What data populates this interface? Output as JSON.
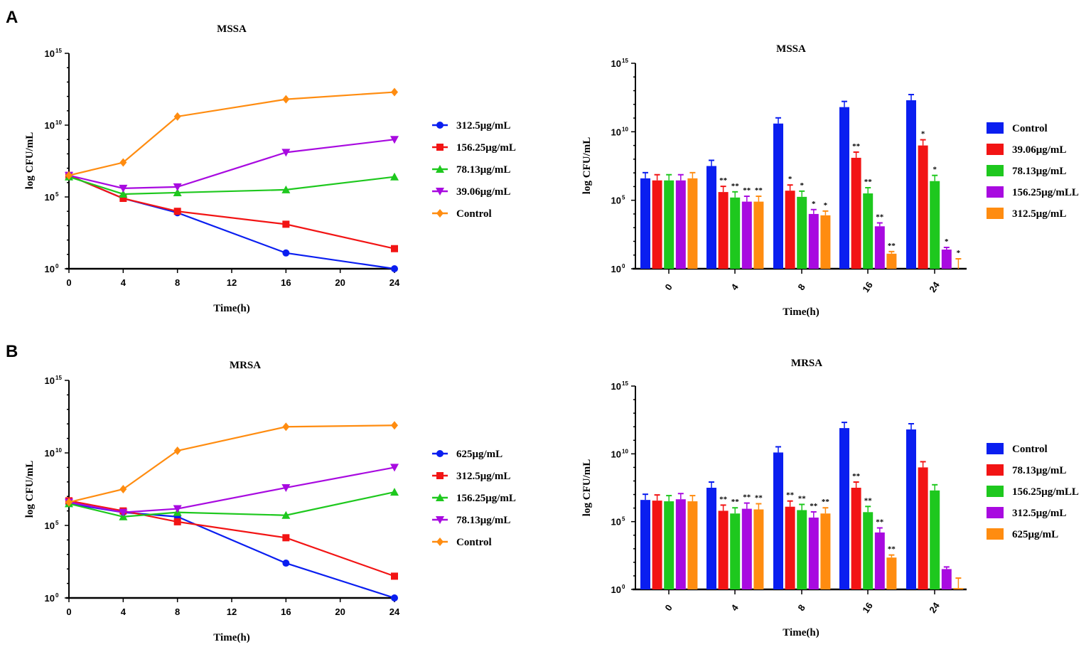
{
  "panels": [
    {
      "letter": "A"
    },
    {
      "letter": "B"
    }
  ],
  "colors": {
    "blue": "#0a1ef0",
    "red": "#f21414",
    "green": "#1ec81e",
    "purple": "#a80ae0",
    "orange": "#ff8c10"
  },
  "chart_data": [
    {
      "type": "line",
      "title": "MSSA",
      "xlabel": "Time(h)",
      "ylabel": "log CFU/mL",
      "yscale": "log10",
      "xlim": [
        0,
        24
      ],
      "ylim_log10": [
        0,
        15
      ],
      "xticks": [
        0,
        4,
        8,
        12,
        16,
        20,
        24
      ],
      "yticks_log10": [
        0,
        5,
        10,
        15
      ],
      "x": [
        0,
        4,
        8,
        16,
        24
      ],
      "legend": "right",
      "series": [
        {
          "name": "312.5μg/mL",
          "color": "blue",
          "marker": "circle",
          "values_log10": [
            6.5,
            4.9,
            3.9,
            1.1,
            0
          ]
        },
        {
          "name": "156.25μg/mL",
          "color": "red",
          "marker": "square",
          "values_log10": [
            6.5,
            4.9,
            4.0,
            3.1,
            1.4
          ]
        },
        {
          "name": "78.13μg/mL",
          "color": "green",
          "marker": "triangle-up",
          "values_log10": [
            6.4,
            5.2,
            5.3,
            5.5,
            6.4
          ]
        },
        {
          "name": "39.06μg/mL",
          "color": "purple",
          "marker": "triangle-down",
          "values_log10": [
            6.5,
            5.6,
            5.7,
            8.1,
            9.0
          ]
        },
        {
          "name": "Control",
          "color": "orange",
          "marker": "diamond",
          "values_log10": [
            6.5,
            7.4,
            10.6,
            11.8,
            12.3
          ]
        }
      ]
    },
    {
      "type": "bar",
      "title": "MSSA",
      "xlabel": "Time(h)",
      "ylabel": "log CFU/mL",
      "yscale": "log10",
      "ylim_log10": [
        0,
        15
      ],
      "yticks_log10": [
        0,
        5,
        10,
        15
      ],
      "categories": [
        "0",
        "4",
        "8",
        "16",
        "24"
      ],
      "legend": "right",
      "series": [
        {
          "name": "Control",
          "color": "blue",
          "values_log10": [
            6.6,
            7.5,
            10.6,
            11.8,
            12.3
          ],
          "annotations": [
            "",
            "",
            "",
            "",
            ""
          ]
        },
        {
          "name": "39.06μg/mL",
          "color": "red",
          "values_log10": [
            6.45,
            5.6,
            5.7,
            8.1,
            9.0
          ],
          "annotations": [
            "",
            "**",
            "*",
            "**",
            "*"
          ]
        },
        {
          "name": "78.13μg/mL",
          "color": "green",
          "values_log10": [
            6.45,
            5.2,
            5.25,
            5.5,
            6.4
          ],
          "annotations": [
            "",
            "**",
            "*",
            "**",
            "*"
          ]
        },
        {
          "name": "156.25μg/mLL",
          "color": "purple",
          "values_log10": [
            6.45,
            4.9,
            4.0,
            3.1,
            1.4
          ],
          "annotations": [
            "",
            "**",
            "*",
            "**",
            "*"
          ]
        },
        {
          "name": "312.5μg/mL",
          "color": "orange",
          "values_log10": [
            6.6,
            4.9,
            3.9,
            1.1,
            0
          ],
          "annotations": [
            "",
            "**",
            "*",
            "**",
            "*"
          ]
        }
      ]
    },
    {
      "type": "line",
      "title": "MRSA",
      "xlabel": "Time(h)",
      "ylabel": "log CFU/mL",
      "yscale": "log10",
      "xlim": [
        0,
        24
      ],
      "ylim_log10": [
        0,
        15
      ],
      "xticks": [
        0,
        4,
        8,
        12,
        16,
        20,
        24
      ],
      "yticks_log10": [
        0,
        5,
        10,
        15
      ],
      "x": [
        0,
        4,
        8,
        16,
        24
      ],
      "legend": "right",
      "series": [
        {
          "name": "625μg/mL",
          "color": "blue",
          "marker": "circle",
          "values_log10": [
            6.5,
            5.9,
            5.6,
            2.4,
            0
          ]
        },
        {
          "name": "312.5μg/mL",
          "color": "red",
          "marker": "square",
          "values_log10": [
            6.7,
            6.0,
            5.25,
            4.15,
            1.5
          ]
        },
        {
          "name": "156.25μg/mL",
          "color": "green",
          "marker": "triangle-up",
          "values_log10": [
            6.5,
            5.6,
            5.9,
            5.7,
            7.3
          ]
        },
        {
          "name": "78.13μg/mL",
          "color": "purple",
          "marker": "triangle-down",
          "values_log10": [
            6.6,
            5.9,
            6.15,
            7.6,
            9.0
          ]
        },
        {
          "name": "Control",
          "color": "orange",
          "marker": "diamond",
          "values_log10": [
            6.6,
            7.5,
            10.15,
            11.8,
            11.9
          ]
        }
      ]
    },
    {
      "type": "bar",
      "title": "MRSA",
      "xlabel": "Time(h)",
      "ylabel": "log CFU/mL",
      "yscale": "log10",
      "ylim_log10": [
        0,
        15
      ],
      "yticks_log10": [
        0,
        5,
        10,
        15
      ],
      "categories": [
        "0",
        "4",
        "8",
        "16",
        "24"
      ],
      "legend": "right",
      "series": [
        {
          "name": "Control",
          "color": "blue",
          "values_log10": [
            6.6,
            7.5,
            10.1,
            11.9,
            11.8
          ],
          "annotations": [
            "",
            "",
            "",
            "",
            ""
          ]
        },
        {
          "name": "78.13μg/mL",
          "color": "red",
          "values_log10": [
            6.55,
            5.8,
            6.1,
            7.5,
            9.0
          ],
          "annotations": [
            "",
            "**",
            "**",
            "**",
            ""
          ]
        },
        {
          "name": "156.25μg/mLL",
          "color": "green",
          "values_log10": [
            6.5,
            5.6,
            5.85,
            5.7,
            7.3
          ],
          "annotations": [
            "",
            "**",
            "**",
            "**",
            ""
          ]
        },
        {
          "name": "312.5μg/mL",
          "color": "purple",
          "values_log10": [
            6.65,
            5.95,
            5.3,
            4.2,
            1.5
          ],
          "annotations": [
            "",
            "**",
            "**",
            "**",
            ""
          ]
        },
        {
          "name": "625μg/mL",
          "color": "orange",
          "values_log10": [
            6.5,
            5.9,
            5.6,
            2.35,
            0.1
          ],
          "annotations": [
            "",
            "**",
            "**",
            "**",
            ""
          ]
        }
      ]
    }
  ]
}
